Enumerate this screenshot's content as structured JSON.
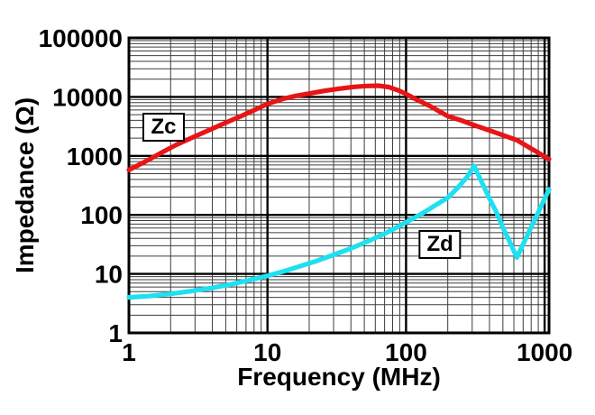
{
  "chart_data": {
    "type": "line",
    "title": "",
    "xlabel": "Frequency (MHz)",
    "ylabel": "Impedance (Ω)",
    "x_scale": "log",
    "y_scale": "log",
    "xlim": [
      1,
      1076
    ],
    "ylim": [
      1,
      100000
    ],
    "x_tick_values": [
      1,
      10,
      100,
      1000
    ],
    "x_tick_labels": [
      "1",
      "10",
      "100",
      "1000"
    ],
    "y_tick_values": [
      1,
      10,
      100,
      1000,
      10000,
      100000
    ],
    "y_tick_labels": [
      "1",
      "10",
      "100",
      "1000",
      "10000",
      "100000"
    ],
    "grid": {
      "major": true,
      "minor": true
    },
    "legend_position": "none",
    "series": [
      {
        "name": "Zc",
        "color": "#e81416",
        "points": [
          [
            1,
            580
          ],
          [
            1.3,
            790
          ],
          [
            1.7,
            1120
          ],
          [
            2.2,
            1540
          ],
          [
            3,
            2150
          ],
          [
            4,
            2900
          ],
          [
            5,
            3650
          ],
          [
            6.5,
            4750
          ],
          [
            8,
            5950
          ],
          [
            10,
            7600
          ],
          [
            13,
            9300
          ],
          [
            16,
            10400
          ],
          [
            20,
            11400
          ],
          [
            26,
            12700
          ],
          [
            33,
            13800
          ],
          [
            42,
            14800
          ],
          [
            52,
            15300
          ],
          [
            63,
            15500
          ],
          [
            75,
            14700
          ],
          [
            88,
            12900
          ],
          [
            100,
            11200
          ],
          [
            120,
            8900
          ],
          [
            150,
            6900
          ],
          [
            200,
            4700
          ],
          [
            250,
            4000
          ],
          [
            300,
            3400
          ],
          [
            400,
            2700
          ],
          [
            500,
            2250
          ],
          [
            630,
            1850
          ],
          [
            800,
            1330
          ],
          [
            900,
            1130
          ],
          [
            1000,
            970
          ],
          [
            1076,
            880
          ]
        ]
      },
      {
        "name": "Zd",
        "color": "#1ee0f1",
        "points": [
          [
            1,
            4.0
          ],
          [
            1.4,
            4.2
          ],
          [
            2,
            4.6
          ],
          [
            2.8,
            5.1
          ],
          [
            4,
            5.8
          ],
          [
            5.5,
            6.7
          ],
          [
            7.5,
            7.9
          ],
          [
            10,
            9.3
          ],
          [
            13,
            11
          ],
          [
            17,
            13.4
          ],
          [
            22,
            16.2
          ],
          [
            30,
            21
          ],
          [
            40,
            27
          ],
          [
            55,
            37
          ],
          [
            75,
            52
          ],
          [
            100,
            75
          ],
          [
            130,
            105
          ],
          [
            170,
            155
          ],
          [
            200,
            195
          ],
          [
            240,
            300
          ],
          [
            280,
            460
          ],
          [
            310,
            680
          ],
          [
            360,
            320
          ],
          [
            400,
            190
          ],
          [
            450,
            110
          ],
          [
            500,
            61
          ],
          [
            560,
            35
          ],
          [
            630,
            19
          ],
          [
            700,
            32
          ],
          [
            800,
            62
          ],
          [
            900,
            111
          ],
          [
            1000,
            187
          ],
          [
            1076,
            270
          ]
        ]
      }
    ],
    "annotations": [
      {
        "text": "Zc",
        "f_mhz": 1.78,
        "z_ohm": 3060
      },
      {
        "text": "Zd",
        "f_mhz": 176,
        "z_ohm": 31.5
      }
    ],
    "colors": {
      "background": "#ffffff",
      "grid_major": "#000000",
      "grid_minor": "#3d3d3d",
      "plot_border": "#000000",
      "text": "#000000"
    }
  }
}
